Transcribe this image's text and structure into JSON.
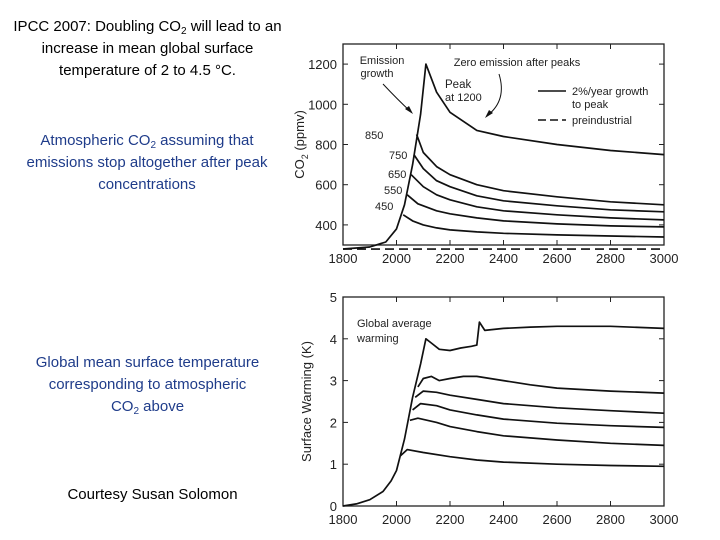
{
  "slide": {
    "title": {
      "pre": "IPCC 2007: Doubling CO",
      "sub": "2",
      "post": " will lead to an increase in mean global surface temperature of 2 to 4.5 °C."
    },
    "caption_co2": {
      "pre": "Atmospheric CO",
      "sub": "2",
      "post": " assuming that emissions stop altogether after peak concentrations"
    },
    "caption_temp": {
      "pre": "Global mean surface temperature corresponding to atmospheric CO",
      "sub": "2",
      "post": " above"
    },
    "credit": "Courtesy Susan Solomon"
  },
  "chart_data": [
    {
      "type": "line",
      "title": "",
      "xlabel": "",
      "ylabel": "CO2 (ppmv)",
      "xlim": [
        1800,
        3000
      ],
      "ylim": [
        300,
        1300
      ],
      "x_ticks": [
        "1800",
        "2000",
        "2200",
        "2400",
        "2600",
        "2800",
        "3000"
      ],
      "y_ticks": [
        "400",
        "600",
        "800",
        "1000",
        "1200"
      ],
      "annotations": {
        "emission_growth": [
          "Emission",
          "growth"
        ],
        "zero_emission": "Zero emission after peaks",
        "peak": [
          "Peak",
          "at 1200"
        ],
        "peak_labels": [
          "850",
          "750",
          "650",
          "550",
          "450"
        ]
      },
      "legend": {
        "position": "top-right",
        "entries": [
          "2%/year growth",
          "to peak",
          "preindustrial"
        ]
      },
      "preindustrial": 280,
      "series": [
        {
          "name": "1200",
          "x": [
            1800,
            1900,
            1960,
            2000,
            2030,
            2060,
            2090,
            2110,
            2150,
            2200,
            2300,
            2400,
            2600,
            2800,
            3000
          ],
          "values": [
            280,
            290,
            315,
            380,
            500,
            700,
            950,
            1200,
            1060,
            960,
            870,
            840,
            800,
            770,
            750
          ]
        },
        {
          "name": "850",
          "x": [
            2075,
            2100,
            2150,
            2200,
            2300,
            2400,
            2600,
            2800,
            3000
          ],
          "values": [
            850,
            760,
            690,
            650,
            600,
            570,
            540,
            515,
            500
          ]
        },
        {
          "name": "750",
          "x": [
            2065,
            2100,
            2150,
            2200,
            2300,
            2400,
            2600,
            2800,
            3000
          ],
          "values": [
            750,
            680,
            620,
            590,
            545,
            520,
            495,
            475,
            465
          ]
        },
        {
          "name": "650",
          "x": [
            2055,
            2100,
            2150,
            2200,
            2300,
            2400,
            2600,
            2800,
            3000
          ],
          "values": [
            650,
            590,
            550,
            525,
            490,
            470,
            450,
            435,
            425
          ]
        },
        {
          "name": "550",
          "x": [
            2040,
            2080,
            2150,
            2200,
            2300,
            2400,
            2600,
            2800,
            3000
          ],
          "values": [
            550,
            505,
            470,
            455,
            435,
            420,
            405,
            395,
            390
          ]
        },
        {
          "name": "450",
          "x": [
            2025,
            2060,
            2100,
            2150,
            2200,
            2300,
            2400,
            2600,
            2800,
            3000
          ],
          "values": [
            450,
            420,
            400,
            385,
            375,
            365,
            358,
            350,
            345,
            340
          ]
        }
      ]
    },
    {
      "type": "line",
      "title": "",
      "xlabel": "",
      "ylabel": "Surface Warming (K)",
      "xlim": [
        1800,
        3000
      ],
      "ylim": [
        0,
        5
      ],
      "x_ticks": [
        "1800",
        "2000",
        "2200",
        "2400",
        "2600",
        "2800",
        "3000"
      ],
      "y_ticks": [
        "0",
        "1",
        "2",
        "3",
        "4",
        "5"
      ],
      "annotations": {
        "label": [
          "Global average",
          "warming"
        ]
      },
      "series": [
        {
          "name": "1200",
          "x": [
            1800,
            1850,
            1900,
            1950,
            1980,
            2000,
            2030,
            2060,
            2090,
            2110,
            2130,
            2160,
            2200,
            2240,
            2280,
            2300,
            2310,
            2330,
            2400,
            2500,
            2600,
            2800,
            3000
          ],
          "values": [
            0,
            0.05,
            0.15,
            0.35,
            0.6,
            0.85,
            1.6,
            2.6,
            3.4,
            4.0,
            3.9,
            3.75,
            3.72,
            3.78,
            3.82,
            3.85,
            4.4,
            4.2,
            4.25,
            4.28,
            4.3,
            4.3,
            4.25
          ]
        },
        {
          "name": "850",
          "x": [
            2080,
            2100,
            2130,
            2160,
            2200,
            2250,
            2300,
            2400,
            2500,
            2600,
            2800,
            3000
          ],
          "values": [
            2.85,
            3.05,
            3.1,
            3.0,
            3.05,
            3.1,
            3.1,
            3.0,
            2.9,
            2.82,
            2.75,
            2.7
          ]
        },
        {
          "name": "750",
          "x": [
            2070,
            2100,
            2150,
            2200,
            2300,
            2400,
            2600,
            2800,
            3000
          ],
          "values": [
            2.6,
            2.75,
            2.72,
            2.65,
            2.55,
            2.45,
            2.35,
            2.28,
            2.22
          ]
        },
        {
          "name": "650",
          "x": [
            2060,
            2090,
            2150,
            2200,
            2300,
            2400,
            2600,
            2800,
            3000
          ],
          "values": [
            2.3,
            2.45,
            2.4,
            2.3,
            2.18,
            2.08,
            1.98,
            1.92,
            1.88
          ]
        },
        {
          "name": "550",
          "x": [
            2050,
            2080,
            2150,
            2200,
            2300,
            2400,
            2600,
            2800,
            3000
          ],
          "values": [
            2.05,
            2.1,
            2.0,
            1.9,
            1.78,
            1.68,
            1.58,
            1.5,
            1.45
          ]
        },
        {
          "name": "450",
          "x": [
            2015,
            2040,
            2100,
            2200,
            2300,
            2400,
            2600,
            2800,
            3000
          ],
          "values": [
            1.2,
            1.35,
            1.28,
            1.18,
            1.1,
            1.05,
            1.0,
            0.97,
            0.95
          ]
        }
      ]
    }
  ]
}
